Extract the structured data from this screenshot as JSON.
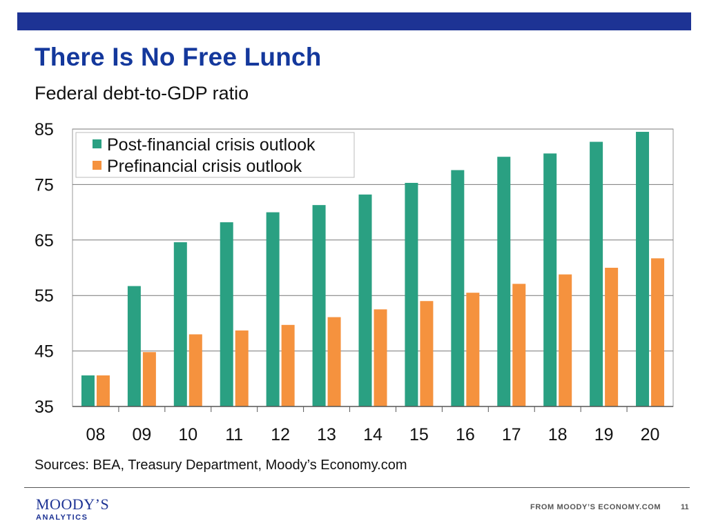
{
  "slide": {
    "title": "There Is No Free Lunch",
    "subtitle": "Federal debt-to-GDP ratio",
    "sources": "Sources: BEA, Treasury Department, Moody’s Economy.com",
    "footer_source": "FROM MOODY’S ECONOMY.COM",
    "page_number": "11",
    "logo_main": "MOODY’S",
    "logo_sub": "ANALYTICS"
  },
  "colors": {
    "brand_blue": "#1d3394",
    "post_crisis": "#2aa082",
    "pre_crisis": "#f5923e"
  },
  "chart_data": {
    "type": "bar",
    "title": "Federal debt-to-GDP ratio",
    "xlabel": "",
    "ylabel": "",
    "categories": [
      "08",
      "09",
      "10",
      "11",
      "12",
      "13",
      "14",
      "15",
      "16",
      "17",
      "18",
      "19",
      "20"
    ],
    "series": [
      {
        "name": "Post-financial crisis outlook",
        "color": "#2aa082",
        "values": [
          40.6,
          56.7,
          64.6,
          68.2,
          70.0,
          71.3,
          73.2,
          75.3,
          77.6,
          80.0,
          80.6,
          82.7,
          84.5
        ]
      },
      {
        "name": "Prefinancial crisis outlook",
        "color": "#f5923e",
        "values": [
          40.6,
          44.8,
          48.0,
          48.7,
          49.7,
          51.1,
          52.5,
          54.0,
          55.5,
          57.1,
          58.8,
          60.0,
          61.7
        ]
      }
    ],
    "ylim": [
      35,
      85
    ],
    "yticks": [
      35,
      45,
      55,
      65,
      75,
      85
    ],
    "grid": true,
    "legend": "top-left"
  }
}
